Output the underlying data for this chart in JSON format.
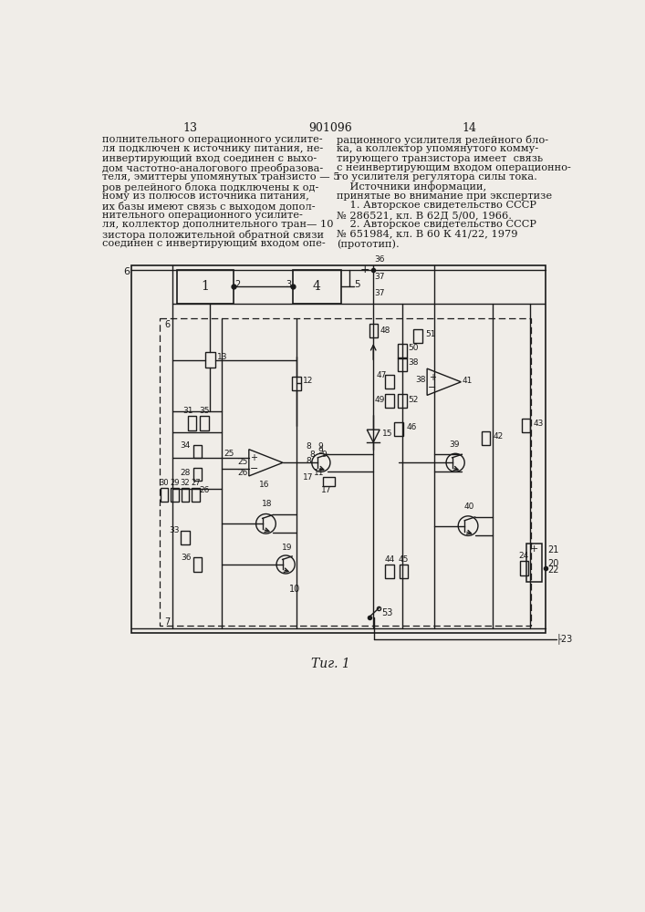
{
  "page_color": "#f0ede8",
  "text_color": "#1a1a1a",
  "title": "901096",
  "page_left": "13",
  "page_right": "14",
  "fig_caption": "Τиг. 1",
  "left_col_text": [
    "полнительного операционного усилите-",
    "ля подключен к источнику питания, не-",
    "инвертирующий вход соединен с выхо-",
    "дом частотно-аналогового преобразова-",
    "теля, эмиттеры упомянутых транзисто — 5",
    "ров релейного блока подключены к од-",
    "ному из полюсов источника питания,",
    "их базы имеют связь с выходом допол-",
    "нительного операционного усилите-",
    "ля, коллектор дополнительного тран— 10",
    "зистора положительной обратной связи",
    "соединен с инвертирующим входом опе-"
  ],
  "right_col_text": [
    "рационного усилителя релейного бло-",
    "ка, а коллектор упомянутого комму-",
    "тирующего транзистора имеет  связь",
    "с неинвертирующим входом операционно-",
    "го усилителя регулятора силы тока.",
    "    Источники информации,",
    "принятые во внимание при экспертизе",
    "    1. Авторское свидетельство СССР",
    "№ 286521, кл. В 62Д 5/00, 1966.",
    "    2. Авторское свидетельство СССР",
    "№ 651984, кл. В 60 К 41/22, 1979",
    "(прототип)."
  ]
}
